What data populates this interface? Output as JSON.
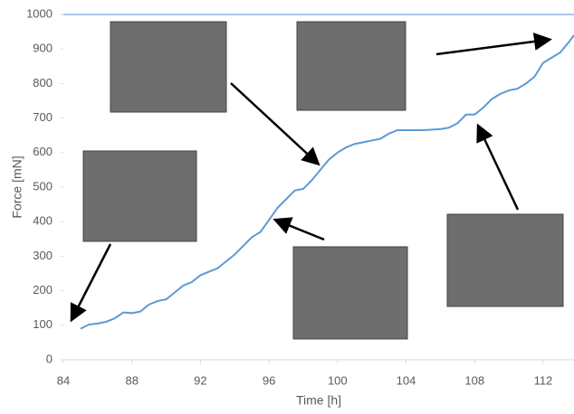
{
  "chart_data": {
    "type": "line",
    "x_label": "Time [h]",
    "y_label": "Force [mN]",
    "x": [
      85.0,
      85.5,
      86.0,
      86.5,
      87.0,
      87.5,
      88.0,
      88.5,
      89.0,
      89.5,
      90.0,
      90.5,
      91.0,
      91.5,
      92.0,
      92.5,
      93.0,
      93.5,
      94.0,
      94.5,
      95.0,
      95.5,
      96.0,
      96.5,
      97.0,
      97.5,
      98.0,
      98.5,
      99.0,
      99.5,
      100.0,
      100.5,
      101.0,
      101.5,
      102.0,
      102.5,
      103.0,
      103.5,
      104.0,
      105.0,
      106.0,
      106.5,
      107.0,
      107.5,
      108.0,
      108.5,
      109.0,
      109.5,
      110.0,
      110.5,
      111.0,
      111.5,
      112.0,
      112.5,
      113.0,
      113.5,
      113.8
    ],
    "series": [
      {
        "color": "#5b9bd5",
        "values": [
          90,
          102,
          105,
          110,
          120,
          137,
          135,
          140,
          160,
          170,
          175,
          195,
          215,
          225,
          245,
          255,
          265,
          285,
          305,
          330,
          355,
          370,
          405,
          440,
          465,
          490,
          495,
          520,
          550,
          580,
          600,
          615,
          625,
          630,
          635,
          640,
          655,
          665,
          665,
          665,
          668,
          672,
          685,
          710,
          710,
          730,
          755,
          770,
          780,
          785,
          800,
          820,
          860,
          875,
          890,
          920,
          940
        ]
      }
    ],
    "xlim": [
      84,
      113.8
    ],
    "ylim": [
      0,
      1000
    ],
    "xticks": [
      84,
      88,
      92,
      96,
      100,
      104,
      108,
      112
    ],
    "yticks": [
      0,
      100,
      200,
      300,
      400,
      500,
      600,
      700,
      800,
      900,
      1000
    ]
  }
}
